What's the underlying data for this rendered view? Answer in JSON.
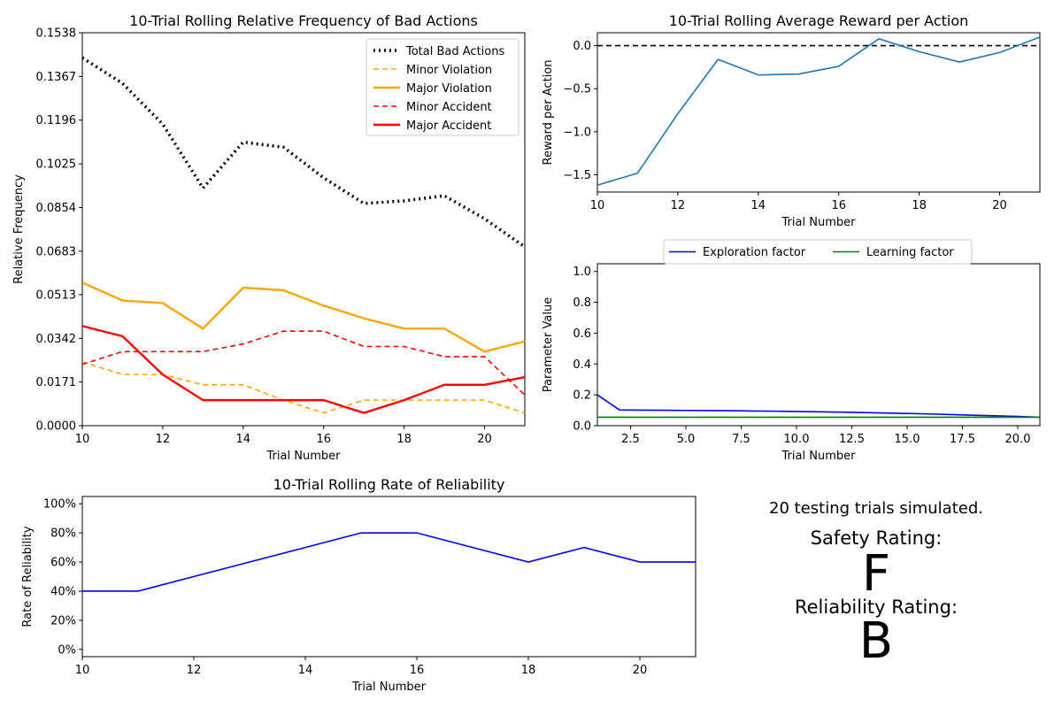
{
  "chart_data": [
    {
      "id": "bad_actions",
      "type": "line",
      "title": "10-Trial Rolling Relative Frequency of Bad Actions",
      "xlabel": "Trial Number",
      "ylabel": "Relative Frequency",
      "xlim": [
        10,
        21
      ],
      "ylim": [
        0,
        0.1538
      ],
      "xticks": [
        10,
        12,
        14,
        16,
        18,
        20
      ],
      "yticks": [
        "0.0000",
        "0.0171",
        "0.0342",
        "0.0513",
        "0.0683",
        "0.0854",
        "0.1025",
        "0.1196",
        "0.1367",
        "0.1538"
      ],
      "legend_position": "top-right",
      "x": [
        10,
        11,
        12,
        13,
        14,
        15,
        16,
        17,
        18,
        19,
        20,
        21
      ],
      "series": [
        {
          "name": "Total Bad Actions",
          "color": "#000000",
          "style": "dotted",
          "values": [
            0.144,
            0.134,
            0.118,
            0.093,
            0.111,
            0.109,
            0.097,
            0.087,
            0.088,
            0.09,
            0.081,
            0.07
          ]
        },
        {
          "name": "Minor Violation",
          "color": "#ffa500",
          "style": "dashed",
          "values": [
            0.025,
            0.02,
            0.02,
            0.016,
            0.016,
            0.01,
            0.005,
            0.01,
            0.01,
            0.01,
            0.01,
            0.005
          ]
        },
        {
          "name": "Major Violation",
          "color": "#ffa500",
          "style": "solid",
          "values": [
            0.056,
            0.049,
            0.048,
            0.038,
            0.054,
            0.053,
            0.047,
            0.042,
            0.038,
            0.038,
            0.029,
            0.033
          ]
        },
        {
          "name": "Minor Accident",
          "color": "#ff0000",
          "style": "dashed",
          "values": [
            0.024,
            0.029,
            0.029,
            0.029,
            0.032,
            0.037,
            0.037,
            0.031,
            0.031,
            0.027,
            0.027,
            0.012
          ]
        },
        {
          "name": "Major Accident",
          "color": "#ff0000",
          "style": "solid",
          "values": [
            0.039,
            0.035,
            0.02,
            0.01,
            0.01,
            0.01,
            0.01,
            0.005,
            0.01,
            0.016,
            0.016,
            0.019
          ]
        }
      ]
    },
    {
      "id": "reward",
      "type": "line",
      "title": "10-Trial Rolling Average Reward per Action",
      "xlabel": "Trial Number",
      "ylabel": "Reward per Action",
      "xlim": [
        10,
        21
      ],
      "ylim": [
        -1.7,
        0.15
      ],
      "xticks": [
        10,
        12,
        14,
        16,
        18,
        20
      ],
      "yticks": [
        0.0,
        -0.5,
        -1.0,
        -1.5
      ],
      "ytick_labels": [
        "0.0",
        "−0.5",
        "−1.0",
        "−1.5"
      ],
      "reference_line": {
        "y": 0.0,
        "style": "dashed",
        "color": "#000000"
      },
      "x": [
        10,
        11,
        12,
        13,
        14,
        15,
        16,
        17,
        18,
        19,
        20,
        21
      ],
      "series": [
        {
          "color": "#1f77b4",
          "style": "solid",
          "values": [
            -1.62,
            -1.48,
            -0.79,
            -0.16,
            -0.34,
            -0.33,
            -0.24,
            0.08,
            -0.07,
            -0.19,
            -0.08,
            0.1
          ]
        }
      ]
    },
    {
      "id": "parameters",
      "type": "line",
      "xlabel": "Trial Number",
      "ylabel": "Parameter Value",
      "xlim": [
        1,
        21
      ],
      "ylim": [
        0,
        1.05
      ],
      "xticks": [
        2.5,
        5.0,
        7.5,
        10.0,
        12.5,
        15.0,
        17.5,
        20.0
      ],
      "xtick_labels": [
        "2.5",
        "5.0",
        "7.5",
        "10.0",
        "12.5",
        "15.0",
        "17.5",
        "20.0"
      ],
      "yticks": [
        0.0,
        0.2,
        0.4,
        0.6,
        0.8,
        1.0
      ],
      "ytick_labels": [
        "0.0",
        "0.2",
        "0.4",
        "0.6",
        "0.8",
        "1.0"
      ],
      "legend_position": "top, outside",
      "x": [
        1,
        2,
        3,
        4,
        5,
        6,
        7,
        8,
        9,
        10,
        11,
        12,
        13,
        14,
        15,
        16,
        17,
        18,
        19,
        20,
        21
      ],
      "series": [
        {
          "name": "Exploration factor",
          "color": "#0000ff",
          "style": "solid",
          "values": [
            0.2,
            0.102,
            0.101,
            0.1,
            0.099,
            0.098,
            0.097,
            0.095,
            0.094,
            0.092,
            0.09,
            0.088,
            0.085,
            0.082,
            0.079,
            0.076,
            0.072,
            0.068,
            0.064,
            0.06,
            0.055
          ]
        },
        {
          "name": "Learning factor",
          "color": "#008000",
          "style": "solid",
          "values": [
            0.055,
            0.055,
            0.055,
            0.055,
            0.055,
            0.055,
            0.055,
            0.055,
            0.055,
            0.055,
            0.055,
            0.055,
            0.055,
            0.055,
            0.055,
            0.055,
            0.055,
            0.055,
            0.055,
            0.055,
            0.055
          ]
        }
      ]
    },
    {
      "id": "reliability",
      "type": "line",
      "title": "10-Trial Rolling Rate of Reliability",
      "xlabel": "Trial Number",
      "ylabel": "Rate of Reliability",
      "xlim": [
        10,
        21
      ],
      "ylim": [
        -0.05,
        1.05
      ],
      "xticks": [
        10,
        12,
        14,
        16,
        18,
        20
      ],
      "yticks": [
        0,
        0.2,
        0.4,
        0.6,
        0.8,
        1.0
      ],
      "ytick_labels": [
        "0%",
        "20%",
        "40%",
        "60%",
        "80%",
        "100%"
      ],
      "x": [
        10,
        11,
        15,
        16,
        18,
        19,
        20,
        21
      ],
      "series": [
        {
          "color": "#0000ff",
          "style": "solid",
          "values": [
            0.4,
            0.4,
            0.8,
            0.8,
            0.6,
            0.7,
            0.6,
            0.6
          ]
        }
      ]
    }
  ],
  "summary": {
    "trials_text": "20 testing trials simulated.",
    "safety_label": "Safety Rating:",
    "safety_grade": "F",
    "safety_color": "#ff0000",
    "reliability_label": "Reliability Rating:",
    "reliability_grade": "B",
    "reliability_color": "#008000"
  }
}
